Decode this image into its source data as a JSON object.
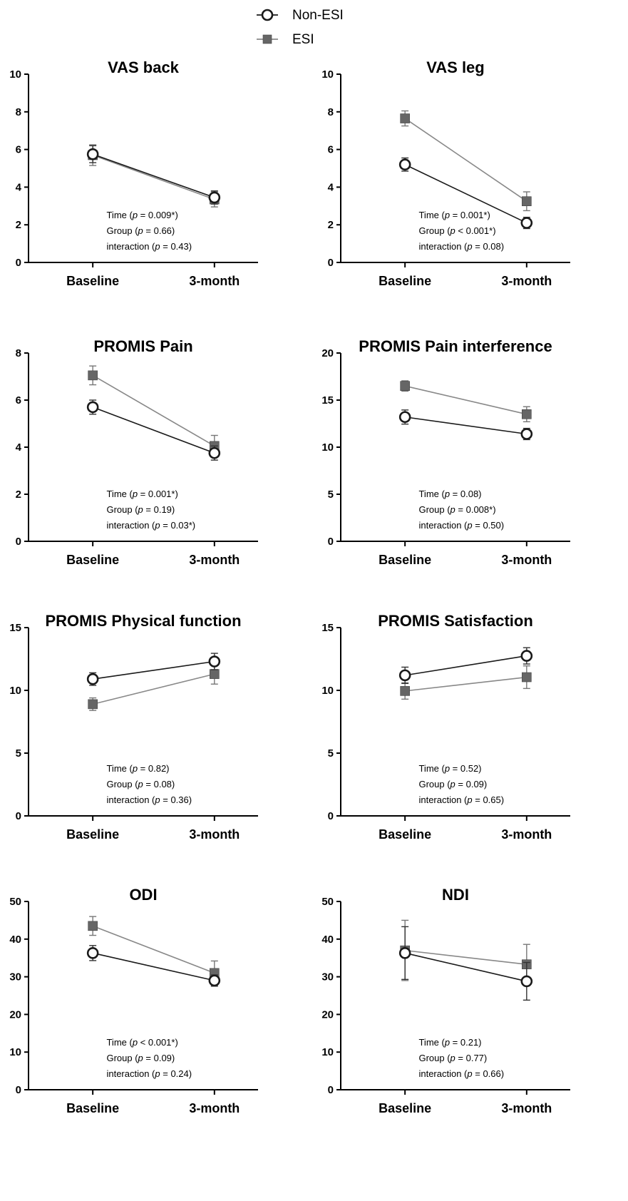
{
  "legend": {
    "items": [
      {
        "label": "Non-ESI",
        "marker": "circle"
      },
      {
        "label": "ESI",
        "marker": "square"
      }
    ]
  },
  "colors": {
    "non_esi": "#1a1a1a",
    "esi": "#666666",
    "esi_line": "#888888",
    "axis": "#000000"
  },
  "chart_data": [
    {
      "type": "line",
      "title": "VAS back",
      "categories": [
        "Baseline",
        "3-month"
      ],
      "ylim": [
        0,
        10
      ],
      "yticks": [
        0,
        2,
        4,
        6,
        8,
        10
      ],
      "series": [
        {
          "name": "Non-ESI",
          "values": [
            5.75,
            3.45
          ],
          "err": [
            0.45,
            0.35
          ]
        },
        {
          "name": "ESI",
          "values": [
            5.7,
            3.35
          ],
          "err": [
            0.55,
            0.4
          ]
        }
      ],
      "stats": [
        {
          "pre": "Time (",
          "p": "p",
          "post": " = 0.009*)"
        },
        {
          "pre": "Group (",
          "p": "p",
          "post": " = 0.66)"
        },
        {
          "pre": "interaction (",
          "p": "p",
          "post": " = 0.43)"
        }
      ]
    },
    {
      "type": "line",
      "title": "VAS leg",
      "categories": [
        "Baseline",
        "3-month"
      ],
      "ylim": [
        0,
        10
      ],
      "yticks": [
        0,
        2,
        4,
        6,
        8,
        10
      ],
      "series": [
        {
          "name": "Non-ESI",
          "values": [
            5.2,
            2.1
          ],
          "err": [
            0.35,
            0.3
          ]
        },
        {
          "name": "ESI",
          "values": [
            7.65,
            3.25
          ],
          "err": [
            0.4,
            0.5
          ]
        }
      ],
      "stats": [
        {
          "pre": "Time (",
          "p": "p",
          "post": " = 0.001*)"
        },
        {
          "pre": "Group (",
          "p": "p",
          "post": " < 0.001*)"
        },
        {
          "pre": "interaction (",
          "p": "p",
          "post": " = 0.08)"
        }
      ]
    },
    {
      "type": "line",
      "title": "PROMIS Pain",
      "categories": [
        "Baseline",
        "3-month"
      ],
      "ylim": [
        0,
        8
      ],
      "yticks": [
        0,
        2,
        4,
        6,
        8
      ],
      "series": [
        {
          "name": "Non-ESI",
          "values": [
            5.7,
            3.75
          ],
          "err": [
            0.3,
            0.3
          ]
        },
        {
          "name": "ESI",
          "values": [
            7.05,
            4.05
          ],
          "err": [
            0.4,
            0.45
          ]
        }
      ],
      "stats": [
        {
          "pre": "Time (",
          "p": "p",
          "post": " = 0.001*)"
        },
        {
          "pre": "Group (",
          "p": "p",
          "post": " = 0.19)"
        },
        {
          "pre": "interaction (",
          "p": "p",
          "post": " = 0.03*)"
        }
      ]
    },
    {
      "type": "line",
      "title": "PROMIS Pain interference",
      "categories": [
        "Baseline",
        "3-month"
      ],
      "ylim": [
        0,
        20
      ],
      "yticks": [
        0,
        5,
        10,
        15,
        20
      ],
      "series": [
        {
          "name": "Non-ESI",
          "values": [
            13.2,
            11.4
          ],
          "err": [
            0.75,
            0.6
          ]
        },
        {
          "name": "ESI",
          "values": [
            16.5,
            13.5
          ],
          "err": [
            0.55,
            0.8
          ]
        }
      ],
      "stats": [
        {
          "pre": "Time (",
          "p": "p",
          "post": " = 0.08)"
        },
        {
          "pre": "Group (",
          "p": "p",
          "post": " = 0.008*)"
        },
        {
          "pre": "interaction (",
          "p": "p",
          "post": " = 0.50)"
        }
      ]
    },
    {
      "type": "line",
      "title": "PROMIS Physical function",
      "categories": [
        "Baseline",
        "3-month"
      ],
      "ylim": [
        0,
        15
      ],
      "yticks": [
        0,
        5,
        10,
        15
      ],
      "series": [
        {
          "name": "Non-ESI",
          "values": [
            10.9,
            12.3
          ],
          "err": [
            0.5,
            0.65
          ]
        },
        {
          "name": "ESI",
          "values": [
            8.9,
            11.3
          ],
          "err": [
            0.5,
            0.8
          ]
        }
      ],
      "stats": [
        {
          "pre": "Time (",
          "p": "p",
          "post": " = 0.82)"
        },
        {
          "pre": "Group (",
          "p": "p",
          "post": " = 0.08)"
        },
        {
          "pre": "interaction (",
          "p": "p",
          "post": " = 0.36)"
        }
      ]
    },
    {
      "type": "line",
      "title": "PROMIS Satisfaction",
      "categories": [
        "Baseline",
        "3-month"
      ],
      "ylim": [
        0,
        15
      ],
      "yticks": [
        0,
        5,
        10,
        15
      ],
      "series": [
        {
          "name": "Non-ESI",
          "values": [
            11.2,
            12.75
          ],
          "err": [
            0.65,
            0.65
          ]
        },
        {
          "name": "ESI",
          "values": [
            9.95,
            11.05
          ],
          "err": [
            0.65,
            0.9
          ]
        }
      ],
      "stats": [
        {
          "pre": "Time (",
          "p": "p",
          "post": " = 0.52)"
        },
        {
          "pre": "Group (",
          "p": "p",
          "post": " = 0.09)"
        },
        {
          "pre": "interaction (",
          "p": "p",
          "post": " = 0.65)"
        }
      ]
    },
    {
      "type": "line",
      "title": "ODI",
      "categories": [
        "Baseline",
        "3-month"
      ],
      "ylim": [
        0,
        50
      ],
      "yticks": [
        0,
        10,
        20,
        30,
        40,
        50
      ],
      "series": [
        {
          "name": "Non-ESI",
          "values": [
            36.3,
            29.0
          ],
          "err": [
            2.0,
            1.5
          ]
        },
        {
          "name": "ESI",
          "values": [
            43.5,
            31.0
          ],
          "err": [
            2.5,
            3.2
          ]
        }
      ],
      "stats": [
        {
          "pre": "Time (",
          "p": "p",
          "post": " < 0.001*)"
        },
        {
          "pre": "Group (",
          "p": "p",
          "post": " = 0.09)"
        },
        {
          "pre": "interaction (",
          "p": "p",
          "post": " = 0.24)"
        }
      ]
    },
    {
      "type": "line",
      "title": "NDI",
      "categories": [
        "Baseline",
        "3-month"
      ],
      "ylim": [
        0,
        50
      ],
      "yticks": [
        0,
        10,
        20,
        30,
        40,
        50
      ],
      "series": [
        {
          "name": "Non-ESI",
          "values": [
            36.3,
            28.8
          ],
          "err": [
            7.0,
            5.0
          ]
        },
        {
          "name": "ESI",
          "values": [
            37.0,
            33.3
          ],
          "err": [
            8.0,
            5.3
          ]
        }
      ],
      "stats": [
        {
          "pre": "Time (",
          "p": "p",
          "post": " = 0.21)"
        },
        {
          "pre": "Group (",
          "p": "p",
          "post": " = 0.77)"
        },
        {
          "pre": "interaction (",
          "p": "p",
          "post": " = 0.66)"
        }
      ]
    }
  ]
}
